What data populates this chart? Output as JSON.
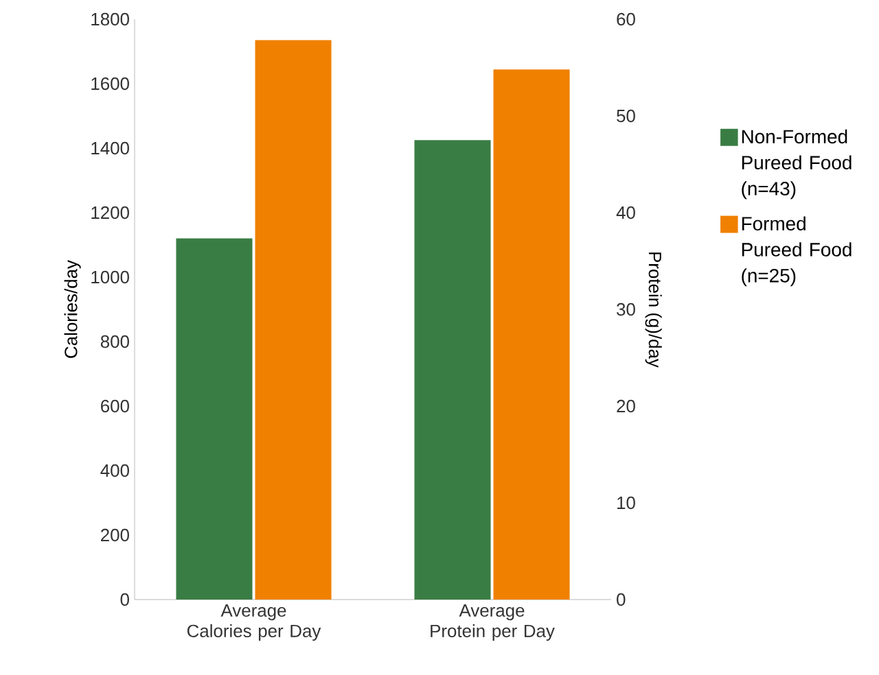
{
  "chart_data": {
    "type": "bar",
    "categories": [
      "Average Calories per Day",
      "Average Protein per Day"
    ],
    "ylabel": "Calories/day",
    "y2label": "Protein (g)/day",
    "ylim": [
      0,
      1800
    ],
    "yticks": [
      0,
      200,
      400,
      600,
      800,
      1000,
      1200,
      1400,
      1600,
      1800
    ],
    "y2lim": [
      0,
      60
    ],
    "y2ticks": [
      0,
      10,
      20,
      30,
      40,
      50,
      60
    ],
    "legend": "right",
    "series": [
      {
        "name": "Non-Formed Pureed Food (n=43)",
        "color": "#3a7d44",
        "values": [
          1120,
          null
        ]
      },
      {
        "name": "Formed Pureed Food (n=25)",
        "color": "#f08000",
        "values": [
          1735,
          null
        ]
      },
      {
        "color": "#3a7d44",
        "values": [
          null,
          47.5
        ],
        "axis": "y2"
      },
      {
        "color": "#f08000",
        "values": [
          null,
          54.8
        ],
        "axis": "y2"
      }
    ]
  }
}
